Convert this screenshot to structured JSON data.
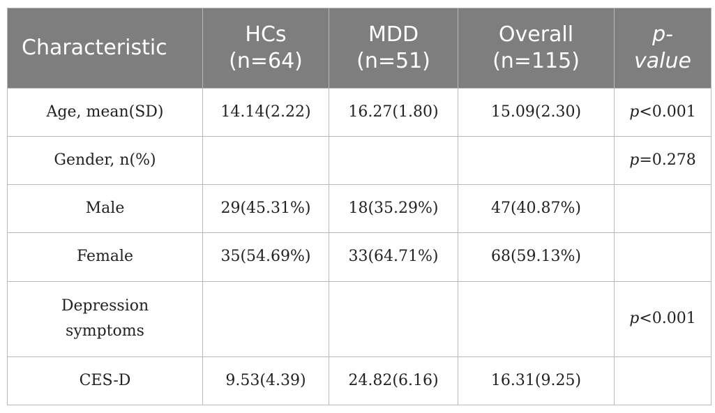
{
  "table": {
    "header": {
      "characteristic": "Characteristic",
      "hcs": [
        "HCs",
        "(n=64)"
      ],
      "mdd": [
        "MDD",
        "(n=51)"
      ],
      "overall": [
        "Overall",
        "(n=115)"
      ],
      "pvalue": [
        "p-",
        "value"
      ]
    },
    "rows": [
      {
        "label": "Age, mean(SD)",
        "hcs": "14.14(2.22)",
        "mdd": "16.27(1.80)",
        "overall": "15.09(2.30)",
        "p_prefix": "p",
        "p_rest": "<0.001"
      },
      {
        "label": "Gender, n(%)",
        "hcs": "",
        "mdd": "",
        "overall": "",
        "p_prefix": "p",
        "p_rest": "=0.278"
      },
      {
        "label": "Male",
        "hcs": "29(45.31%)",
        "mdd": "18(35.29%)",
        "overall": "47(40.87%)",
        "p_prefix": "",
        "p_rest": ""
      },
      {
        "label": "Female",
        "hcs": "35(54.69%)",
        "mdd": "33(64.71%)",
        "overall": "68(59.13%)",
        "p_prefix": "",
        "p_rest": ""
      },
      {
        "label_lines": [
          "Depression",
          "symptoms"
        ],
        "hcs": "",
        "mdd": "",
        "overall": "",
        "p_prefix": "p",
        "p_rest": "<0.001"
      },
      {
        "label": "CES-D",
        "hcs": "9.53(4.39)",
        "mdd": "24.82(6.16)",
        "overall": "16.31(9.25)",
        "p_prefix": "",
        "p_rest": ""
      }
    ]
  }
}
